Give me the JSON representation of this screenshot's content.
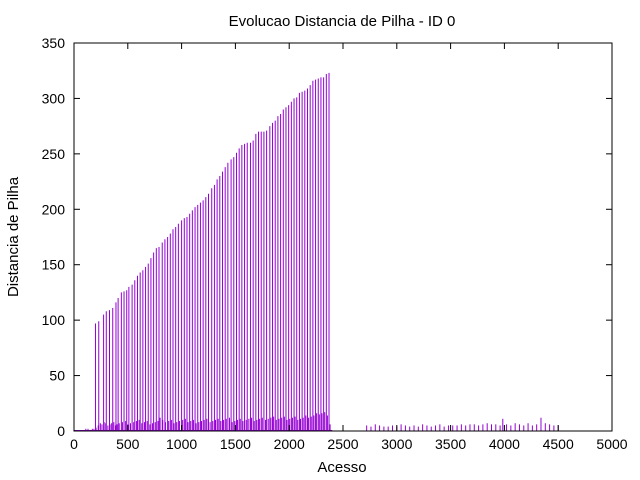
{
  "chart_data": {
    "type": "bar",
    "title": "Evolucao Distancia de Pilha - ID 0",
    "xlabel": "Acesso",
    "ylabel": "Distancia de Pilha",
    "xlim": [
      0,
      5000
    ],
    "ylim": [
      0,
      350
    ],
    "x_ticks": [
      0,
      500,
      1000,
      1500,
      2000,
      2500,
      3000,
      3500,
      4000,
      4500,
      5000
    ],
    "y_ticks": [
      0,
      50,
      100,
      150,
      200,
      250,
      300,
      350
    ],
    "grid": false,
    "legend": "none",
    "bar_color": "#9400d3",
    "tall_spikes": {
      "x": [
        200,
        230,
        275,
        300,
        330,
        360,
        390,
        410,
        440,
        465,
        490,
        510,
        540,
        565,
        590,
        615,
        640,
        665,
        690,
        715,
        740,
        765,
        790,
        820,
        845,
        870,
        895,
        920,
        945,
        970,
        1000,
        1025,
        1050,
        1075,
        1100,
        1125,
        1150,
        1175,
        1200,
        1225,
        1250,
        1280,
        1305,
        1330,
        1355,
        1380,
        1405,
        1430,
        1460,
        1485,
        1510,
        1535,
        1560,
        1585,
        1610,
        1640,
        1665,
        1690,
        1715,
        1740,
        1765,
        1790,
        1820,
        1845,
        1870,
        1895,
        1920,
        1945,
        1970,
        1995,
        2020,
        2045,
        2070,
        2095,
        2120,
        2145,
        2170,
        2195,
        2220,
        2245,
        2270,
        2295,
        2320,
        2345,
        2370
      ],
      "y": [
        97,
        99,
        105,
        108,
        109,
        111,
        116,
        120,
        125,
        126,
        127,
        130,
        132,
        136,
        140,
        143,
        145,
        148,
        151,
        156,
        161,
        165,
        166,
        170,
        173,
        175,
        178,
        182,
        184,
        187,
        190,
        192,
        193,
        196,
        199,
        202,
        204,
        206,
        208,
        211,
        214,
        219,
        222,
        227,
        230,
        234,
        238,
        242,
        245,
        247,
        251,
        255,
        258,
        259,
        260,
        260,
        262,
        268,
        270,
        270,
        270,
        271,
        275,
        278,
        280,
        284,
        286,
        290,
        292,
        294,
        297,
        300,
        301,
        305,
        306,
        307,
        309,
        312,
        316,
        317,
        318,
        319,
        319,
        322,
        323
      ]
    },
    "small_bars": {
      "x": [
        110,
        130,
        150,
        170,
        185,
        205,
        225,
        245,
        260,
        280,
        295,
        315,
        335,
        350,
        370,
        385,
        400,
        420,
        450,
        480,
        500,
        525,
        555,
        580,
        605,
        630,
        655,
        680,
        705,
        730,
        755,
        780,
        800,
        825,
        850,
        880,
        905,
        930,
        955,
        980,
        1010,
        1035,
        1060,
        1085,
        1110,
        1135,
        1160,
        1185,
        1210,
        1235,
        1265,
        1290,
        1315,
        1340,
        1365,
        1390,
        1415,
        1445,
        1470,
        1495,
        1520,
        1545,
        1570,
        1600,
        1625,
        1650,
        1675,
        1700,
        1725,
        1750,
        1780,
        1805,
        1830,
        1855,
        1880,
        1905,
        1930,
        1955,
        1980,
        2005,
        2030,
        2055,
        2080,
        2105,
        2130,
        2155,
        2180,
        2205,
        2230,
        2255,
        2280,
        2305,
        2330,
        2355,
        2380,
        2720,
        2760,
        2800,
        2840,
        2880,
        2920,
        2960,
        3000,
        3040,
        3080,
        3120,
        3160,
        3200,
        3240,
        3280,
        3320,
        3360,
        3400,
        3440,
        3480,
        3520,
        3560,
        3600,
        3640,
        3680,
        3720,
        3760,
        3800,
        3840,
        3880,
        3920,
        3960,
        3985,
        4020,
        4060,
        4100,
        4140,
        4180,
        4220,
        4260,
        4300,
        4340,
        4380,
        4420,
        4460,
        4500
      ],
      "y": [
        2,
        2,
        1,
        2,
        2,
        3,
        5,
        7,
        6,
        8,
        7,
        5,
        6,
        7,
        8,
        5,
        6,
        7,
        8,
        9,
        6,
        7,
        8,
        9,
        10,
        7,
        8,
        9,
        6,
        7,
        8,
        9,
        12,
        10,
        8,
        9,
        10,
        7,
        8,
        9,
        10,
        11,
        8,
        9,
        10,
        7,
        8,
        9,
        10,
        11,
        8,
        9,
        10,
        11,
        9,
        10,
        11,
        12,
        8,
        9,
        10,
        11,
        9,
        10,
        11,
        12,
        9,
        10,
        11,
        12,
        10,
        11,
        12,
        13,
        10,
        11,
        12,
        13,
        10,
        11,
        12,
        13,
        10,
        11,
        12,
        14,
        12,
        13,
        14,
        16,
        15,
        16,
        17,
        14,
        6,
        5,
        4,
        6,
        5,
        4,
        4,
        5,
        4,
        6,
        5,
        4,
        5,
        4,
        6,
        5,
        4,
        5,
        6,
        4,
        5,
        5,
        5,
        6,
        5,
        6,
        6,
        5,
        6,
        7,
        6,
        6,
        5,
        11,
        6,
        5,
        7,
        6,
        5,
        7,
        5,
        6,
        12,
        7,
        6,
        5,
        5
      ]
    }
  }
}
